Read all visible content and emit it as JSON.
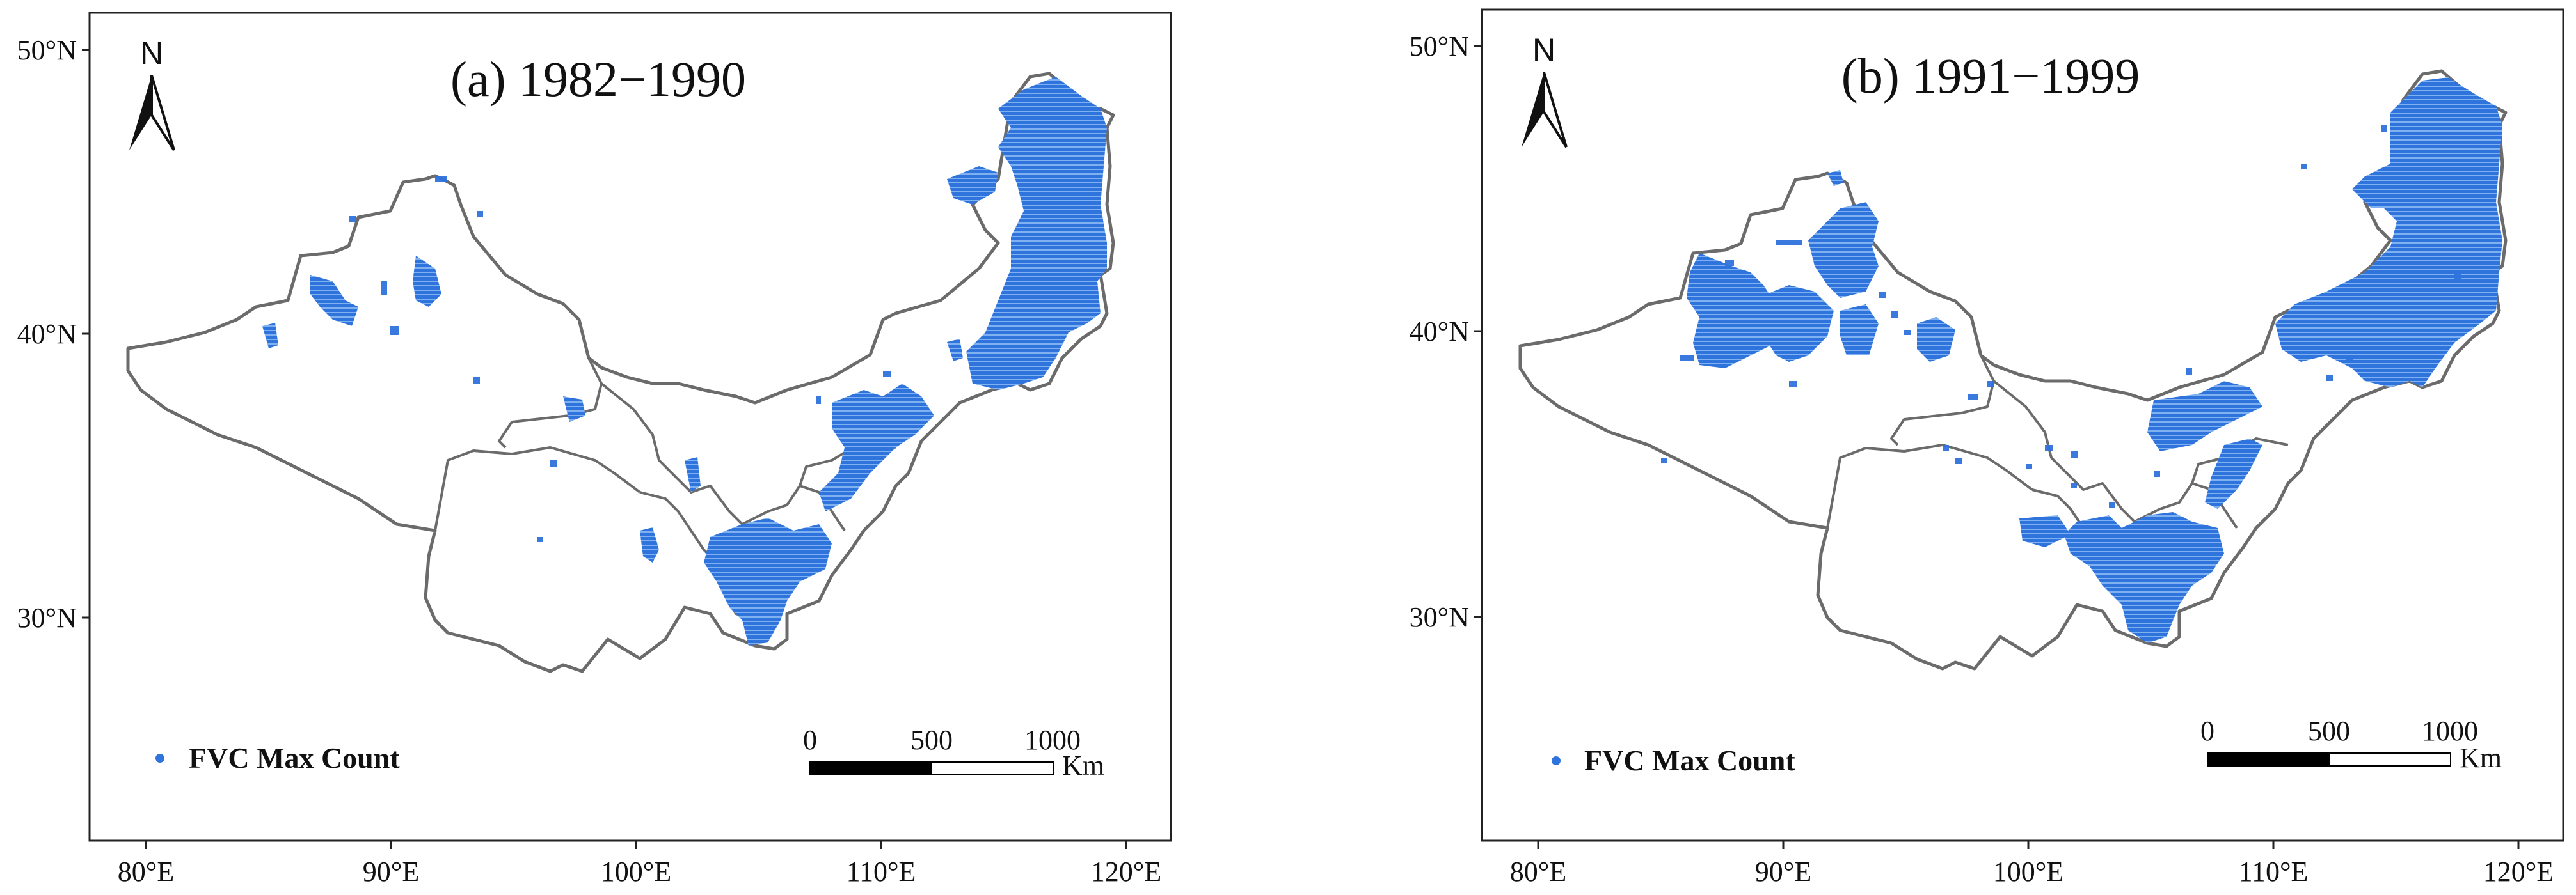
{
  "panels": [
    {
      "title": "(a) 1982−1990",
      "north_label": "N",
      "legend_label": "FVC Max Count",
      "scale": {
        "labels": [
          "0",
          "500",
          "1000"
        ],
        "unit": "Km"
      }
    },
    {
      "title": "(b) 1991−1999",
      "north_label": "N",
      "legend_label": "FVC Max Count",
      "scale": {
        "labels": [
          "0",
          "500",
          "1000"
        ],
        "unit": "Km"
      }
    }
  ],
  "axes": {
    "lat_labels": [
      "50°N",
      "40°N",
      "30°N"
    ],
    "lon_labels": [
      "80°E",
      "90°E",
      "100°E",
      "110°E",
      "120°E"
    ]
  },
  "colors": {
    "fvc_max": "#2f73dc",
    "boundary": "#6b6b6b"
  }
}
